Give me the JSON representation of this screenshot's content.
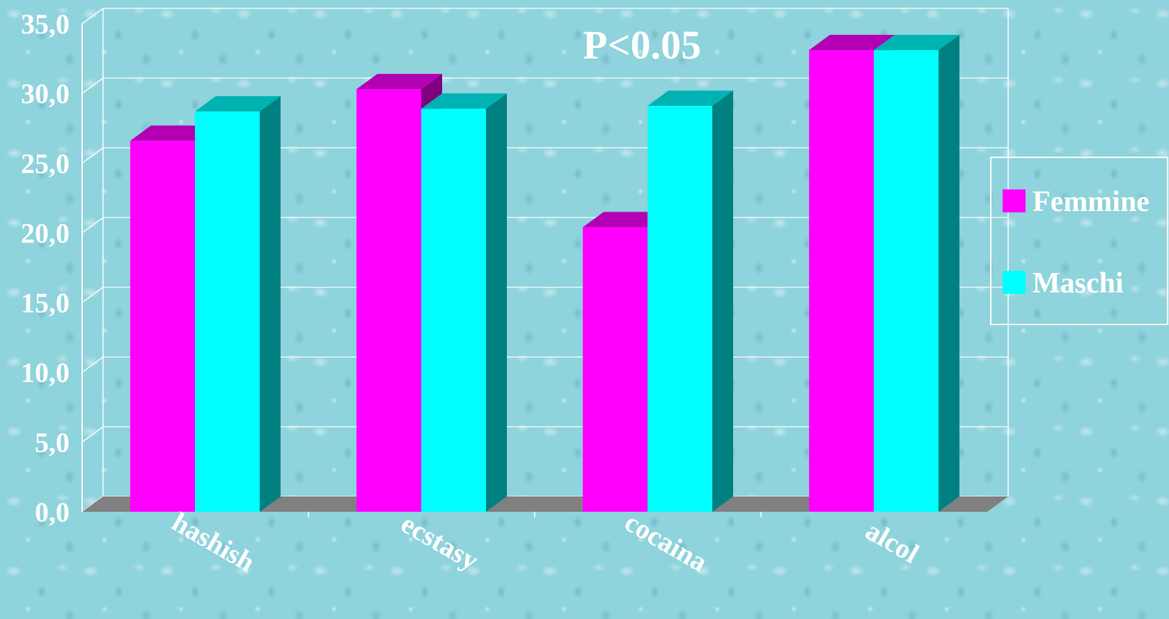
{
  "chart_data": {
    "type": "bar",
    "title": "P<0.05",
    "categories": [
      "hashish",
      "ecstasy",
      "cocaina",
      "alcol"
    ],
    "series": [
      {
        "name": "Femmine",
        "values": [
          26.6,
          30.3,
          20.4,
          33.1
        ],
        "color": "#ff00ff",
        "top_color": "#b300b3"
      },
      {
        "name": "Maschi",
        "values": [
          28.7,
          28.9,
          29.1,
          33.1
        ],
        "color": "#00ffff",
        "top_color": "#00b3b3",
        "side_color": "#008080"
      }
    ],
    "ylim": [
      0,
      35
    ],
    "yticks": [
      "0,0",
      "5,0",
      "10,0",
      "15,0",
      "20,0",
      "25,0",
      "30,0",
      "35,0"
    ],
    "grid": true,
    "legend_position": "right",
    "floor_color": "#808080"
  }
}
